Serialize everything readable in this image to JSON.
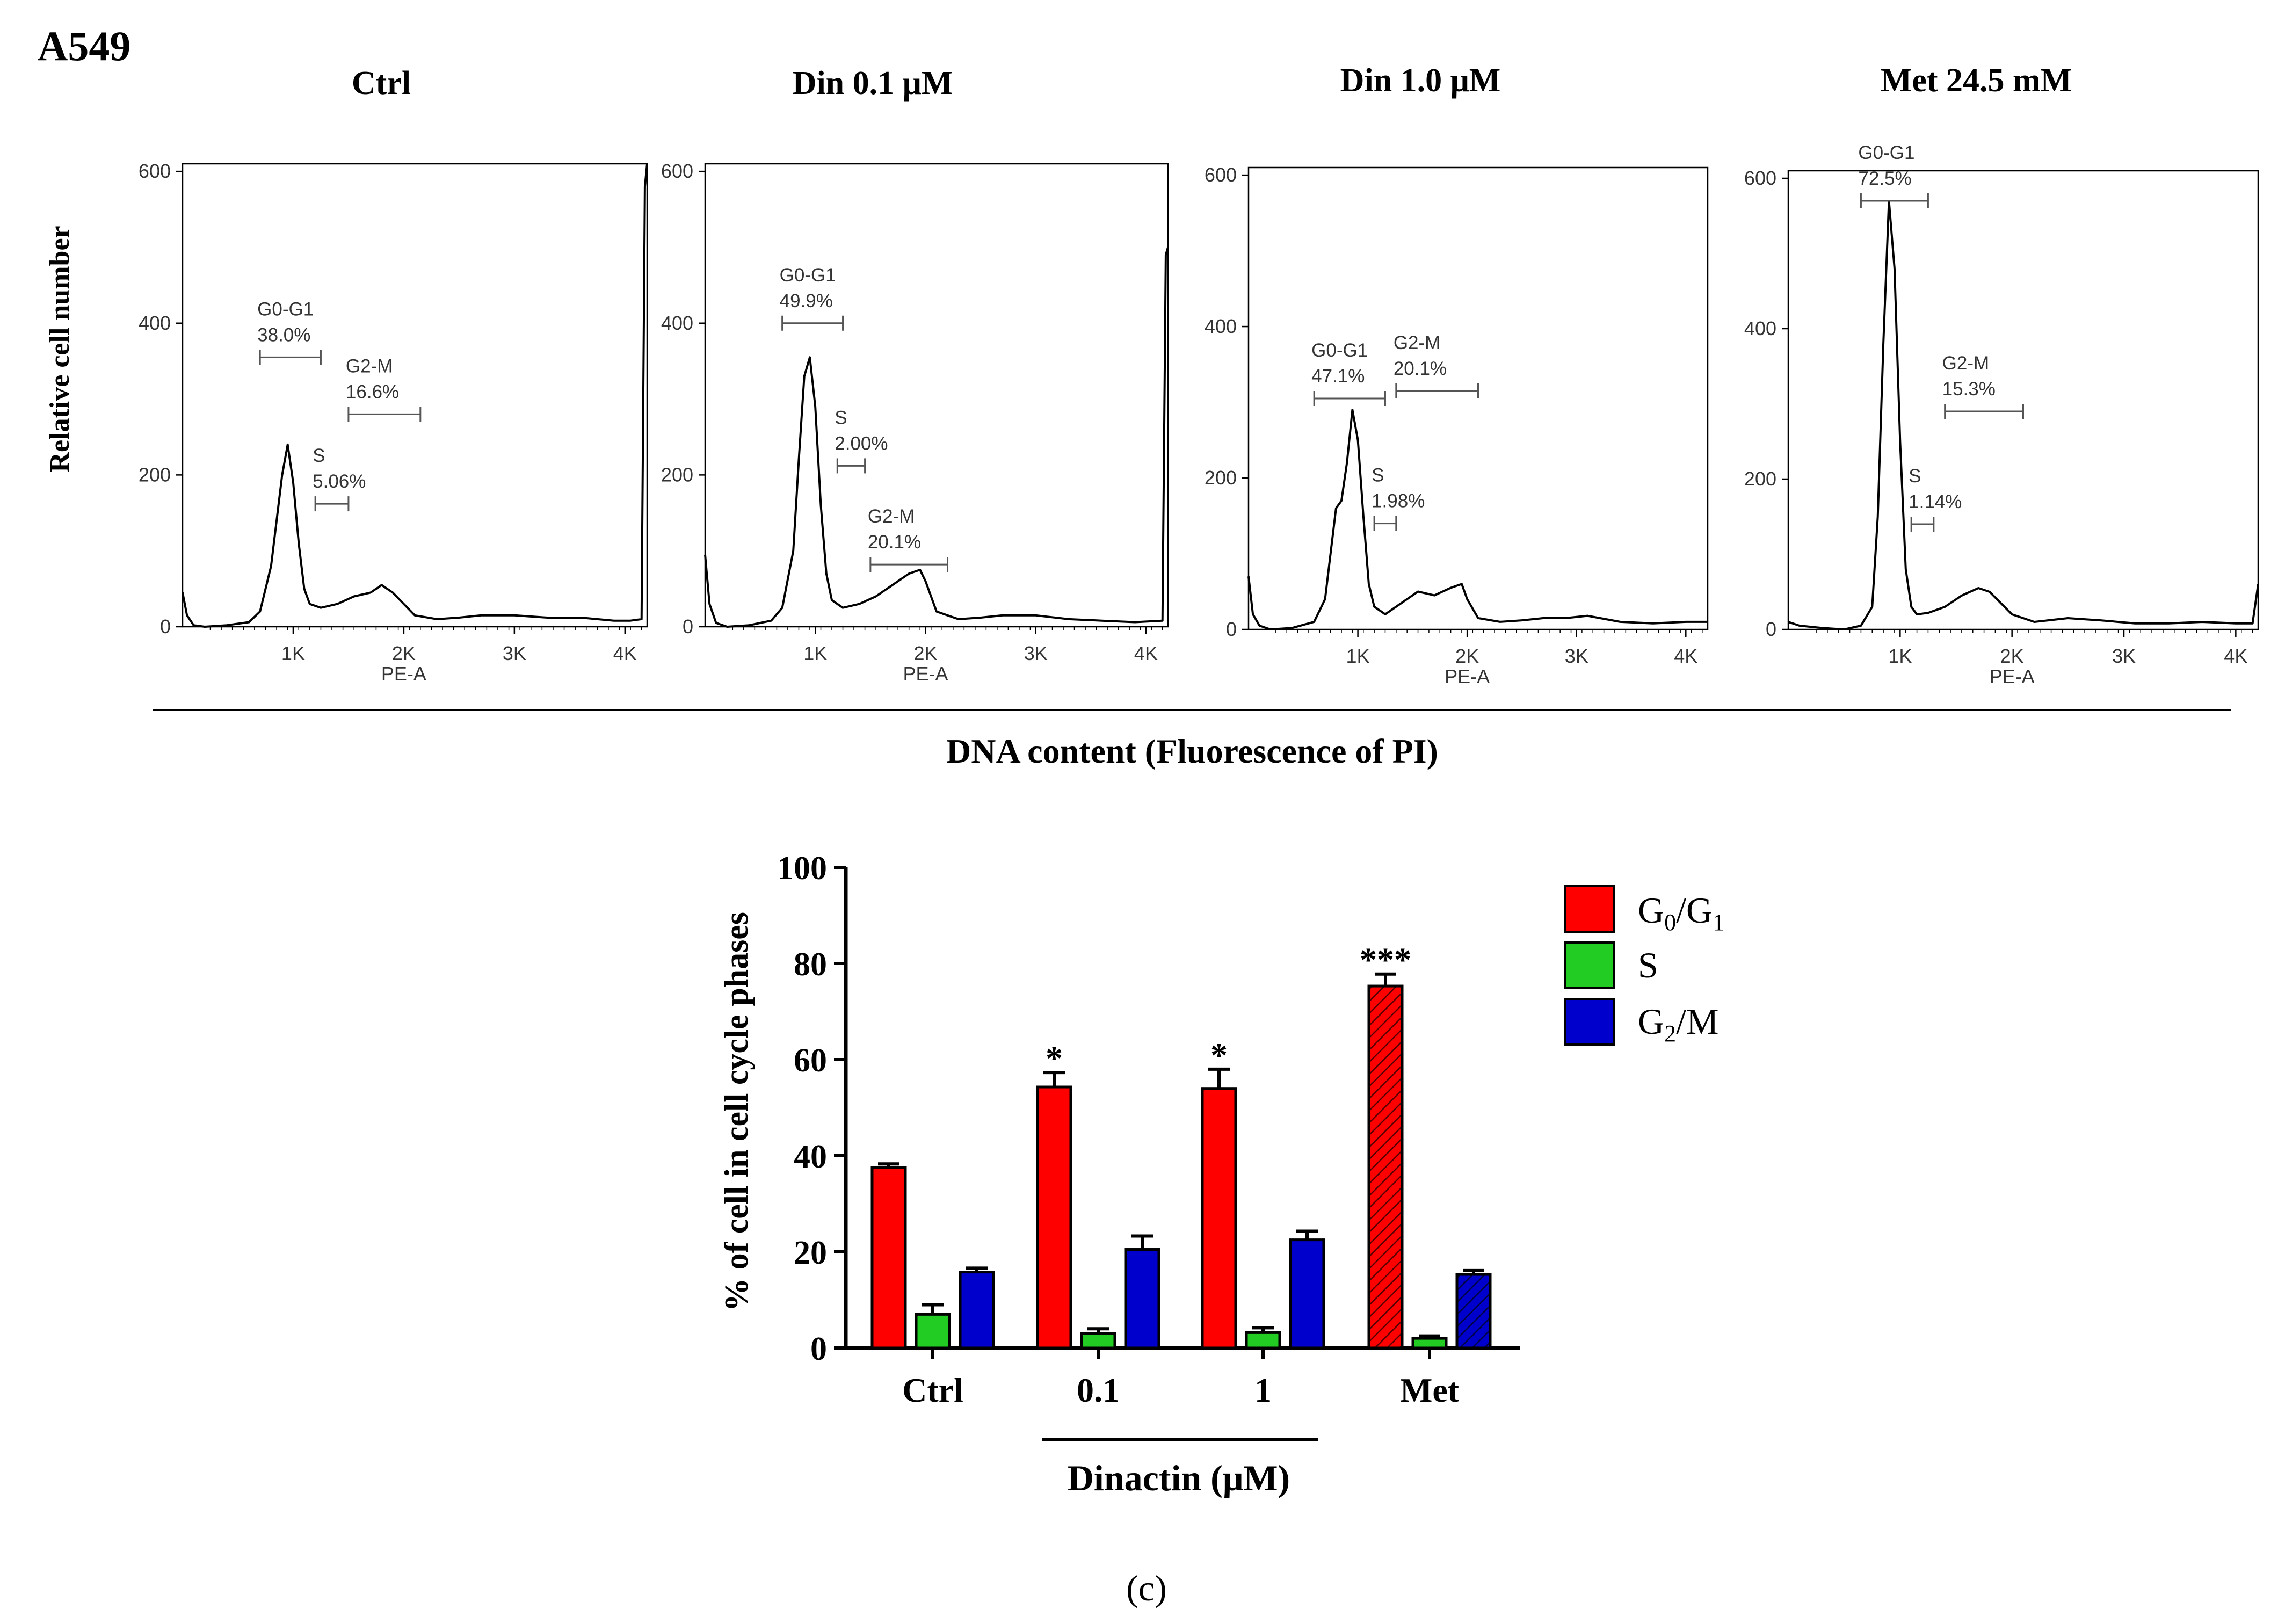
{
  "figure": {
    "cell_line": "A549",
    "panel_label": "(c)",
    "histogram_group_axis_label": "DNA content (Fluorescence of PI)",
    "histogram_ylabel": "Relative cell number",
    "bar_group_label": "Dinactin (μM)"
  },
  "chart_data": [
    {
      "type": "line",
      "title": "Ctrl",
      "xlabel": "PE-A",
      "ylabel": "Relative cell number",
      "x_ticks": [
        "1K",
        "2K",
        "3K",
        "4K"
      ],
      "y_ticks": [
        "0",
        "200",
        "400",
        "600"
      ],
      "xlim": [
        0,
        4200
      ],
      "ylim": [
        0,
        610
      ],
      "series": [
        {
          "x": [
            0,
            40,
            100,
            200,
            400,
            600,
            700,
            800,
            850,
            900,
            950,
            1000,
            1050,
            1100,
            1150,
            1250,
            1400,
            1550,
            1700,
            1800,
            1900,
            2000,
            2100,
            2300,
            2500,
            2700,
            3000,
            3300,
            3600,
            3900,
            4050,
            4150,
            4180,
            4200
          ],
          "y": [
            45,
            15,
            2,
            0,
            2,
            6,
            20,
            80,
            140,
            200,
            240,
            190,
            110,
            50,
            30,
            25,
            30,
            40,
            45,
            55,
            45,
            30,
            15,
            10,
            12,
            15,
            15,
            12,
            12,
            8,
            8,
            10,
            580,
            610
          ]
        }
      ],
      "gates": [
        {
          "name": "G0-G1",
          "value": "38.0%",
          "x1": 700,
          "x2": 1250,
          "y": 355
        },
        {
          "name": "S",
          "value": "5.06%",
          "x1": 1200,
          "x2": 1500,
          "y": 162
        },
        {
          "name": "G2-M",
          "value": "16.6%",
          "x1": 1500,
          "x2": 2150,
          "y": 280
        }
      ]
    },
    {
      "type": "line",
      "title": "Din 0.1 μM",
      "xlabel": "PE-A",
      "ylabel": "",
      "x_ticks": [
        "1K",
        "2K",
        "3K",
        "4K"
      ],
      "y_ticks": [
        "0",
        "200",
        "400",
        "600"
      ],
      "xlim": [
        0,
        4200
      ],
      "ylim": [
        0,
        610
      ],
      "series": [
        {
          "x": [
            0,
            40,
            100,
            200,
            400,
            600,
            700,
            800,
            850,
            900,
            950,
            1000,
            1050,
            1100,
            1150,
            1250,
            1400,
            1550,
            1700,
            1850,
            1950,
            2000,
            2100,
            2300,
            2500,
            2700,
            3000,
            3300,
            3600,
            3900,
            4150,
            4180,
            4200
          ],
          "y": [
            95,
            30,
            5,
            0,
            2,
            8,
            25,
            100,
            220,
            330,
            355,
            290,
            160,
            70,
            35,
            25,
            30,
            40,
            55,
            70,
            75,
            60,
            20,
            10,
            12,
            15,
            15,
            10,
            8,
            6,
            8,
            490,
            500
          ]
        }
      ],
      "gates": [
        {
          "name": "G0-G1",
          "value": "49.9%",
          "x1": 700,
          "x2": 1250,
          "y": 400
        },
        {
          "name": "S",
          "value": "2.00%",
          "x1": 1200,
          "x2": 1450,
          "y": 212
        },
        {
          "name": "G2-M",
          "value": "20.1%",
          "x1": 1500,
          "x2": 2200,
          "y": 82
        }
      ]
    },
    {
      "type": "line",
      "title": "Din 1.0 μM",
      "xlabel": "PE-A",
      "ylabel": "",
      "x_ticks": [
        "1K",
        "2K",
        "3K",
        "4K"
      ],
      "y_ticks": [
        "0",
        "200",
        "400",
        "600"
      ],
      "xlim": [
        0,
        4200
      ],
      "ylim": [
        0,
        610
      ],
      "series": [
        {
          "x": [
            0,
            40,
            100,
            200,
            400,
            600,
            700,
            750,
            800,
            850,
            900,
            950,
            1000,
            1050,
            1100,
            1150,
            1250,
            1400,
            1550,
            1700,
            1850,
            1950,
            2000,
            2100,
            2300,
            2500,
            2700,
            2900,
            3100,
            3400,
            3700,
            4000,
            4200
          ],
          "y": [
            70,
            20,
            5,
            0,
            2,
            10,
            40,
            100,
            160,
            170,
            220,
            290,
            250,
            150,
            60,
            30,
            20,
            35,
            50,
            45,
            55,
            60,
            40,
            15,
            10,
            12,
            15,
            15,
            18,
            10,
            8,
            10,
            10
          ]
        }
      ],
      "gates": [
        {
          "name": "G0-G1",
          "value": "47.1%",
          "x1": 600,
          "x2": 1250,
          "y": 305
        },
        {
          "name": "S",
          "value": "1.98%",
          "x1": 1150,
          "x2": 1350,
          "y": 140
        },
        {
          "name": "G2-M",
          "value": "20.1%",
          "x1": 1350,
          "x2": 2100,
          "y": 315
        }
      ]
    },
    {
      "type": "line",
      "title": "Met 24.5 mM",
      "xlabel": "PE-A",
      "ylabel": "",
      "x_ticks": [
        "1K",
        "2K",
        "3K",
        "4K"
      ],
      "y_ticks": [
        "0",
        "200",
        "400",
        "600"
      ],
      "xlim": [
        0,
        4200
      ],
      "ylim": [
        0,
        610
      ],
      "series": [
        {
          "x": [
            0,
            100,
            300,
            500,
            650,
            750,
            800,
            850,
            900,
            950,
            1000,
            1050,
            1100,
            1150,
            1250,
            1400,
            1550,
            1700,
            1800,
            1900,
            2000,
            2200,
            2500,
            2800,
            3100,
            3400,
            3700,
            4000,
            4150,
            4200
          ],
          "y": [
            10,
            5,
            2,
            0,
            5,
            30,
            150,
            380,
            570,
            480,
            250,
            80,
            30,
            20,
            22,
            30,
            45,
            55,
            50,
            35,
            20,
            10,
            15,
            12,
            8,
            8,
            10,
            8,
            8,
            60
          ]
        }
      ],
      "gates": [
        {
          "name": "G0-G1",
          "value": "72.5%",
          "x1": 650,
          "x2": 1250,
          "y": 570
        },
        {
          "name": "S",
          "value": "1.14%",
          "x1": 1100,
          "x2": 1300,
          "y": 140
        },
        {
          "name": "G2-M",
          "value": "15.3%",
          "x1": 1400,
          "x2": 2100,
          "y": 290
        }
      ]
    },
    {
      "type": "bar",
      "title": "",
      "ylabel": "% of cell in cell cycle phases",
      "xlabel": "",
      "categories": [
        "Ctrl",
        "0.1",
        "1",
        "Met"
      ],
      "ylim": [
        0,
        100
      ],
      "y_ticks": [
        "0",
        "20",
        "40",
        "60",
        "80",
        "100"
      ],
      "series": [
        {
          "name": "G0/G1",
          "name_main": "G",
          "name_sub1": "0",
          "name_mid": "/G",
          "name_sub2": "1",
          "color": "#ff0000",
          "values": [
            37.5,
            54.3,
            54.0,
            75.3
          ],
          "errors": [
            0.8,
            3.0,
            4.0,
            2.5
          ]
        },
        {
          "name": "S",
          "color": "#22cc22",
          "values": [
            7.0,
            3.0,
            3.2,
            2.0
          ],
          "errors": [
            2.0,
            1.0,
            1.0,
            0.5
          ]
        },
        {
          "name": "G2/M",
          "name_main": "G",
          "name_sub1": "2",
          "name_mid": "/M",
          "color": "#0000cc",
          "values": [
            15.8,
            20.5,
            22.5,
            15.3
          ],
          "errors": [
            0.8,
            2.8,
            1.8,
            0.8
          ]
        }
      ],
      "hatched_category": "Met",
      "significance": [
        {
          "category": "0.1",
          "series": "G0/G1",
          "label": "*"
        },
        {
          "category": "1",
          "series": "G0/G1",
          "label": "*"
        },
        {
          "category": "Met",
          "series": "G0/G1",
          "label": "***"
        }
      ],
      "group_label": "Dinactin (μM)",
      "legend_position": "right"
    }
  ]
}
